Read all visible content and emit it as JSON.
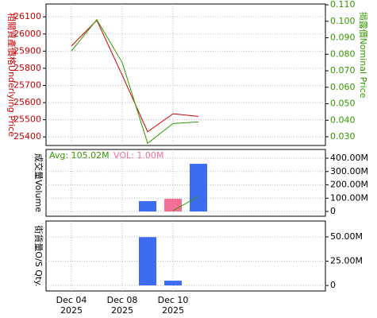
{
  "chart_data": [
    {
      "type": "line",
      "y_title": "相關資產價格Underlying Price",
      "y2_title": "揭露價Nominal Price",
      "ylim": [
        25350,
        26175
      ],
      "yticks": [
        25400,
        25500,
        25600,
        25700,
        25800,
        25900,
        26000,
        26100
      ],
      "y2lim": [
        0.0247,
        0.1105
      ],
      "y2ticks": [
        {
          "value": 0.03,
          "label": "0.030"
        },
        {
          "value": 0.04,
          "label": "0.040"
        },
        {
          "value": 0.05,
          "label": "0.050"
        },
        {
          "value": 0.06,
          "label": "0.060"
        },
        {
          "value": 0.07,
          "label": "0.070"
        },
        {
          "value": 0.08,
          "label": "0.080"
        },
        {
          "value": 0.09,
          "label": "0.090"
        },
        {
          "value": 0.1,
          "label": "0.100"
        },
        {
          "value": 0.11,
          "label": "0.110"
        }
      ],
      "y_color": "#cc0000",
      "y2_color": "#339900",
      "grid": true,
      "series": [
        {
          "color": "#cc0000",
          "values": [
            25930,
            26080,
            25760,
            25430,
            25535,
            25520
          ]
        },
        {
          "color": "#339900",
          "axis": "y2",
          "values": [
            0.082,
            0.101,
            0.075,
            0.026,
            0.038,
            0.039
          ]
        }
      ]
    },
    {
      "type": "bar",
      "y_title": "成交量Volume",
      "avg_label": "Avg: 105.02M",
      "vol_label": "VOL: 1.00M",
      "ylim": [
        -35800000,
        465700000
      ],
      "yticks": [
        0,
        {
          "value": 100000000,
          "label": "100.00M"
        },
        {
          "value": 200000000,
          "label": "200.00M"
        },
        {
          "value": 300000000,
          "label": "300.00M"
        },
        {
          "value": 400000000,
          "label": "400.00M"
        }
      ],
      "grid": true,
      "values": [
        null,
        null,
        null,
        78000000,
        95000000,
        358000000
      ],
      "colors": [
        "#3d6cf0",
        "#3d6cf0",
        "#3d6cf0",
        "#3d6cf0",
        "#f27095",
        "#3d6cf0"
      ],
      "line": {
        "color": "#339900",
        "values": [
          null,
          null,
          null,
          null,
          6000000,
          113000000
        ]
      }
    },
    {
      "type": "bar",
      "y_title": "街貨量O/S Qty.",
      "ylim": [
        -5700000,
        66400000
      ],
      "yticks": [
        0,
        {
          "value": 25000000,
          "label": "25.00M"
        },
        {
          "value": 50000000,
          "label": "50.00M"
        }
      ],
      "grid": true,
      "values": [
        null,
        null,
        null,
        49800000,
        4900000,
        null
      ],
      "colors": [
        "#3d6cf0",
        "#3d6cf0",
        "#3d6cf0",
        "#3d6cf0",
        "#3d6cf0",
        "#3d6cf0"
      ],
      "categories": [
        "Dec 04 2025",
        null,
        "Dec 08 2025",
        null,
        "Dec 10 2025",
        null
      ]
    }
  ]
}
